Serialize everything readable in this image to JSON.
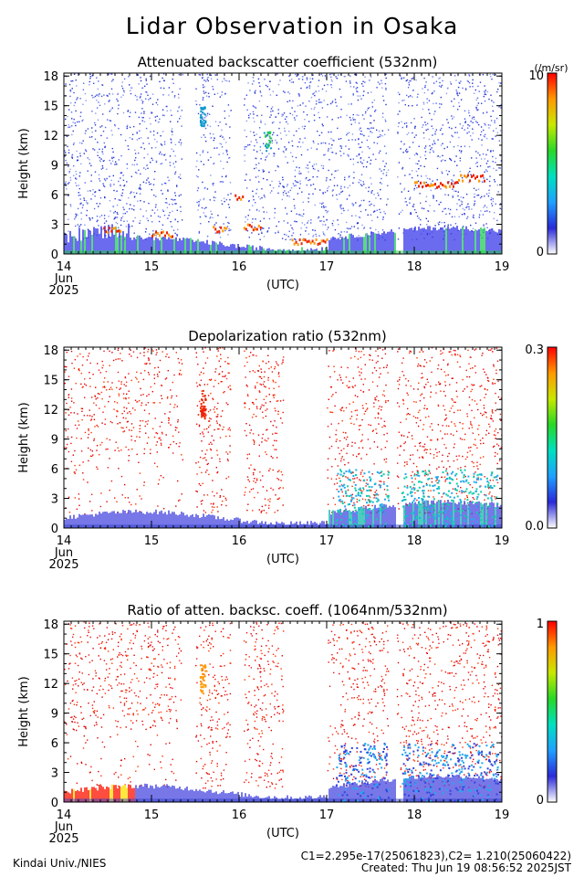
{
  "page_title": "Lidar Observation in Osaka",
  "credit": "Kindai Univ./NIES",
  "footer_calib": "C1=2.295e-17(25061823),C2= 1.210(25060422)",
  "footer_created": "Created: Thu Jun 19 08:56:52 2025JST",
  "chart_data": [
    {
      "type": "heatmap",
      "title": "Attenuated backscatter coefficient (532nm)",
      "ylabel": "Height (km)",
      "xlabel": "(UTC)",
      "x_start_label": [
        "14",
        "Jun",
        "2025"
      ],
      "x_ticks": [
        "14",
        "15",
        "16",
        "17",
        "18",
        "19"
      ],
      "y_ticks": [
        "0",
        "3",
        "6",
        "9",
        "12",
        "15",
        "18"
      ],
      "ylim": [
        0,
        18.3
      ],
      "colorbar": {
        "top_label": "10",
        "bottom_label": "0",
        "unit_label": "(/m/sr)"
      }
    },
    {
      "type": "heatmap",
      "title": "Depolarization ratio (532nm)",
      "ylabel": "Height (km)",
      "xlabel": "(UTC)",
      "x_start_label": [
        "14",
        "Jun",
        "2025"
      ],
      "x_ticks": [
        "14",
        "15",
        "16",
        "17",
        "18",
        "19"
      ],
      "y_ticks": [
        "0",
        "3",
        "6",
        "9",
        "12",
        "15",
        "18"
      ],
      "ylim": [
        0,
        18.3
      ],
      "colorbar": {
        "top_label": "0.3",
        "bottom_label": "0.0",
        "unit_label": ""
      }
    },
    {
      "type": "heatmap",
      "title": "Ratio of atten. backsc. coeff. (1064nm/532nm)",
      "ylabel": "Height (km)",
      "xlabel": "(UTC)",
      "x_start_label": [
        "14",
        "Jun",
        "2025"
      ],
      "x_ticks": [
        "14",
        "15",
        "16",
        "17",
        "18",
        "19"
      ],
      "y_ticks": [
        "0",
        "3",
        "6",
        "9",
        "12",
        "15",
        "18"
      ],
      "ylim": [
        0,
        18.3
      ],
      "colorbar": {
        "top_label": "1",
        "bottom_label": "0",
        "unit_label": ""
      }
    }
  ]
}
